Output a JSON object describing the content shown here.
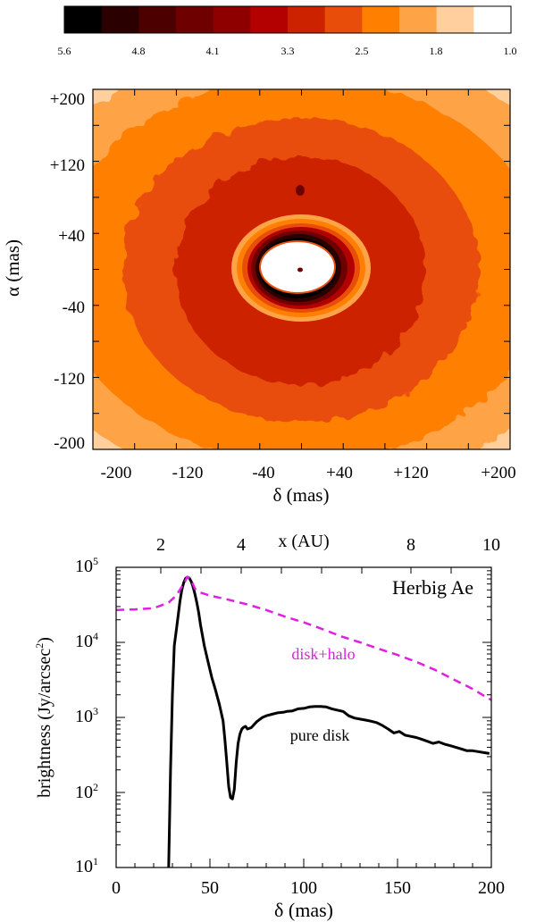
{
  "colors": {
    "scale": [
      "#000000",
      "#2b0000",
      "#4d0000",
      "#6e0000",
      "#8e0000",
      "#b30000",
      "#cc2200",
      "#e84e0a",
      "#ff7f00",
      "#ffa347",
      "#ffcf9e",
      "#ffffff"
    ],
    "disk": "#000000",
    "halo": "#e020e0"
  },
  "colorbar": {
    "labels": [
      "5.6",
      "4.8",
      "4.1",
      "3.3",
      "2.5",
      "1.8",
      "1.0"
    ]
  },
  "chart_data": [
    {
      "type": "heatmap",
      "xlabel": "δ (mas)",
      "ylabel": "α (mas)",
      "xlim": [
        -200,
        200
      ],
      "ylim": [
        -200,
        200
      ],
      "xticks": [
        "-200",
        "-120",
        "-40",
        "+40",
        "+120",
        "+200"
      ],
      "yticks": [
        "+200",
        "+120",
        "+40",
        "-40",
        "-120",
        "-200"
      ],
      "colorbar_range": [
        5.6,
        1.0
      ],
      "colorbar_labels": [
        "5.6",
        "4.8",
        "4.1",
        "3.3",
        "2.5",
        "1.8",
        "1.0"
      ]
    },
    {
      "type": "line",
      "title": "Herbig Ae",
      "xlabel": "δ (mas)",
      "ylabel": "brightness (Jy/arcsec",
      "ylabel_sup": "2",
      "ylabel_close": ")",
      "top_axis_label": "x (AU)",
      "top_ticks": [
        "2",
        "4",
        "8",
        "10"
      ],
      "xlim": [
        0,
        200
      ],
      "ylim": [
        10,
        100000
      ],
      "yscale": "log",
      "xticks": [
        "0",
        "50",
        "100",
        "150",
        "200"
      ],
      "yticks": [
        {
          "base": "10",
          "exp": "1"
        },
        {
          "base": "10",
          "exp": "2"
        },
        {
          "base": "10",
          "exp": "3"
        },
        {
          "base": "10",
          "exp": "4"
        },
        {
          "base": "10",
          "exp": "5"
        }
      ],
      "series": [
        {
          "name": "pure disk",
          "style": "solid",
          "x": [
            28,
            29,
            30,
            31,
            32,
            33,
            34,
            35,
            36,
            37,
            38,
            39,
            40,
            41,
            42,
            43,
            44,
            45,
            47,
            49,
            51,
            53,
            55,
            57,
            58,
            59,
            60,
            61,
            62,
            63,
            64,
            65,
            66,
            67,
            68,
            69,
            70,
            72,
            75,
            78,
            80,
            83,
            86,
            89,
            91,
            94,
            97,
            100,
            103,
            106,
            109,
            112,
            115,
            118,
            121,
            124,
            127,
            130,
            133,
            136,
            139,
            142,
            145,
            148,
            151,
            154,
            157,
            160,
            163,
            166,
            169,
            172,
            175,
            178,
            181,
            184,
            187,
            190,
            193,
            196,
            199
          ],
          "y": [
            10,
            200,
            2000,
            9000,
            14000,
            22000,
            35000,
            50000,
            62000,
            71000,
            74000,
            72000,
            65000,
            55000,
            44000,
            34000,
            25000,
            17000,
            9000,
            5500,
            3400,
            2300,
            1500,
            900,
            500,
            250,
            120,
            85,
            82,
            110,
            250,
            450,
            600,
            700,
            740,
            760,
            700,
            730,
            880,
            1000,
            1050,
            1100,
            1150,
            1170,
            1200,
            1220,
            1300,
            1320,
            1380,
            1400,
            1400,
            1380,
            1300,
            1250,
            1200,
            1050,
            980,
            950,
            920,
            890,
            850,
            780,
            700,
            620,
            650,
            580,
            560,
            540,
            510,
            480,
            450,
            470,
            440,
            420,
            400,
            380,
            360,
            360,
            350,
            340,
            330
          ]
        },
        {
          "name": "disk+halo",
          "style": "dashed",
          "x": [
            0,
            10,
            20,
            28,
            32,
            36,
            38,
            40,
            42,
            45,
            50,
            60,
            70,
            80,
            90,
            100,
            110,
            120,
            130,
            140,
            150,
            160,
            170,
            180,
            190,
            200
          ],
          "y": [
            27000,
            27500,
            28500,
            34000,
            42000,
            60000,
            75000,
            68000,
            52000,
            46000,
            42000,
            37000,
            32000,
            27000,
            22000,
            18500,
            15000,
            12000,
            10000,
            8200,
            6800,
            5500,
            4300,
            3200,
            2400,
            1700
          ]
        }
      ]
    }
  ]
}
